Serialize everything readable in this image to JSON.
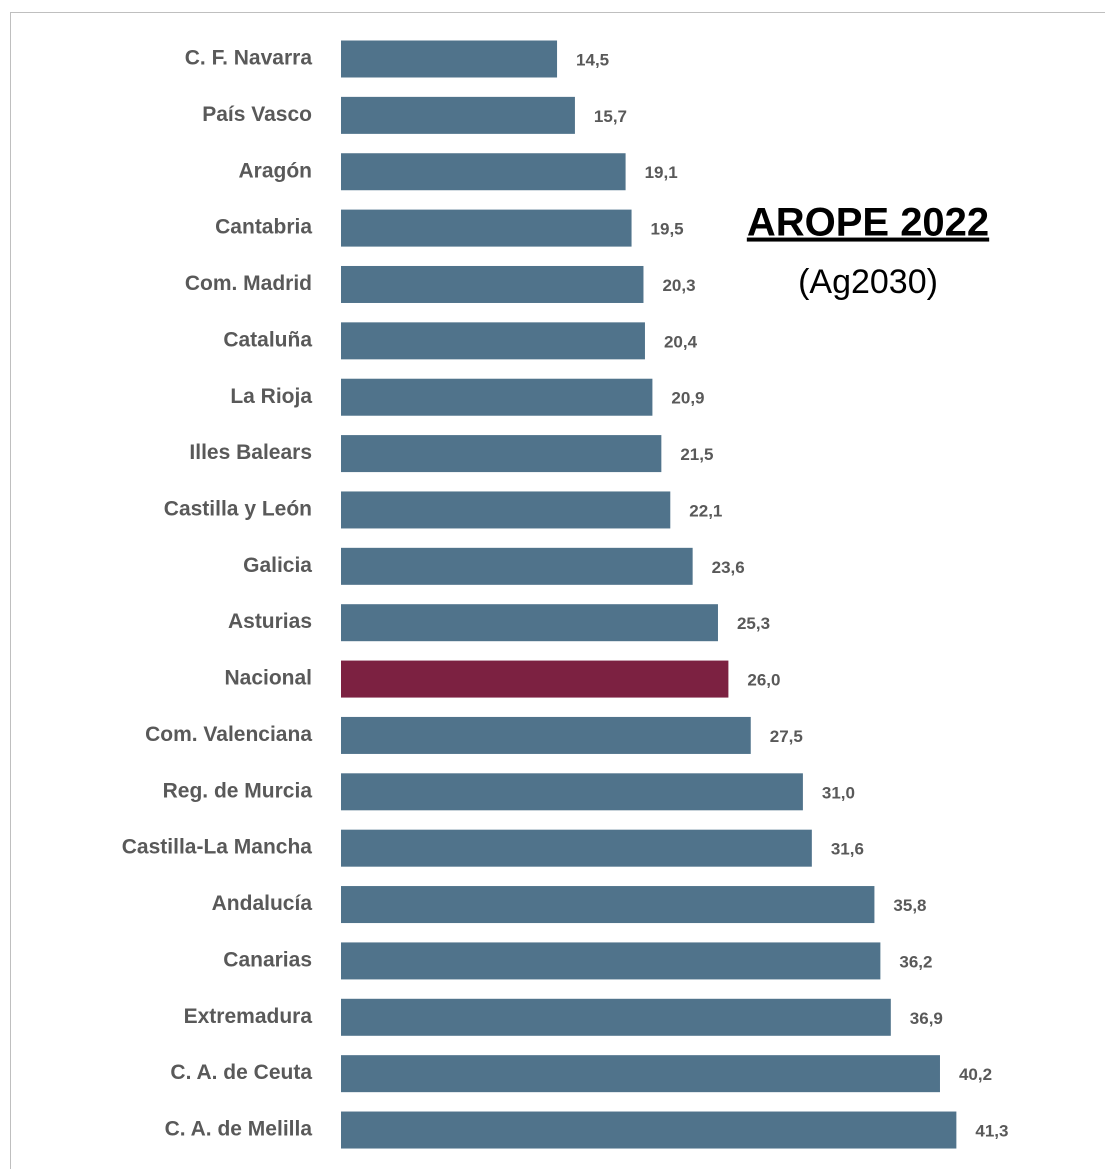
{
  "chart_data": {
    "type": "barh",
    "title": "AROPE 2022",
    "subtitle": "(Ag2030)",
    "categories": [
      "C. F. Navarra",
      "País Vasco",
      "Aragón",
      "Cantabria",
      "Com. Madrid",
      "Cataluña",
      "La Rioja",
      "Illes Balears",
      "Castilla y León",
      "Galicia",
      "Asturias",
      "Nacional",
      "Com. Valenciana",
      "Reg. de Murcia",
      "Castilla-La Mancha",
      "Andalucía",
      "Canarias",
      "Extremadura",
      "C. A. de Ceuta",
      "C. A. de Melilla"
    ],
    "values": [
      14.5,
      15.7,
      19.1,
      19.5,
      20.3,
      20.4,
      20.9,
      21.5,
      22.1,
      23.6,
      25.3,
      26.0,
      27.5,
      31.0,
      31.6,
      35.8,
      36.2,
      36.9,
      40.2,
      41.3
    ],
    "value_labels": [
      "14,5",
      "15,7",
      "19,1",
      "19,5",
      "20,3",
      "20,4",
      "20,9",
      "21,5",
      "22,1",
      "23,6",
      "25,3",
      "26,0",
      "27,5",
      "31,0",
      "31,6",
      "35,8",
      "36,2",
      "36,9",
      "40,2",
      "41,3"
    ],
    "colors": [
      "#50738b",
      "#50738b",
      "#50738b",
      "#50738b",
      "#50738b",
      "#50738b",
      "#50738b",
      "#50738b",
      "#50738b",
      "#50738b",
      "#50738b",
      "#7c2141",
      "#50738b",
      "#50738b",
      "#50738b",
      "#50738b",
      "#50738b",
      "#50738b",
      "#50738b",
      "#50738b"
    ]
  }
}
